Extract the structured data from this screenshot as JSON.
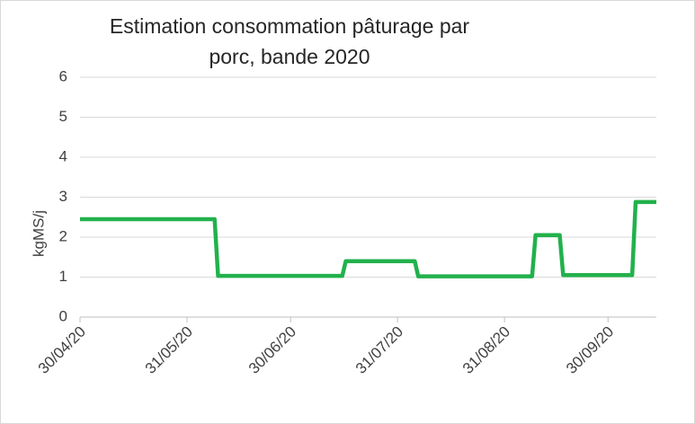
{
  "chart_data": {
    "type": "line",
    "title": "Estimation consommation pâturage par porc, bande 2020",
    "y_label": "kgMS/j",
    "x": [
      "2020-04-30",
      "2020-06-08",
      "2020-06-09",
      "2020-07-15",
      "2020-07-16",
      "2020-08-05",
      "2020-08-06",
      "2020-09-08",
      "2020-09-09",
      "2020-09-16",
      "2020-09-17",
      "2020-10-07",
      "2020-10-08",
      "2020-10-14"
    ],
    "series": [
      {
        "name": "kgMS/j",
        "color": "#22b14c",
        "values": [
          2.45,
          2.45,
          1.03,
          1.03,
          1.4,
          1.4,
          1.02,
          1.02,
          2.05,
          2.05,
          1.05,
          1.05,
          2.88,
          2.88
        ]
      }
    ],
    "xlim": [
      "2020-04-30",
      "2020-10-14"
    ],
    "xticks": [
      {
        "value": "2020-04-30",
        "label": "30/04/20"
      },
      {
        "value": "2020-05-31",
        "label": "31/05/20"
      },
      {
        "value": "2020-06-30",
        "label": "30/06/20"
      },
      {
        "value": "2020-07-31",
        "label": "31/07/20"
      },
      {
        "value": "2020-08-31",
        "label": "31/08/20"
      },
      {
        "value": "2020-09-30",
        "label": "30/09/20"
      }
    ],
    "ylim": [
      0,
      6
    ],
    "yticks": [
      0,
      1,
      2,
      3,
      4,
      5,
      6
    ],
    "grid": true
  }
}
